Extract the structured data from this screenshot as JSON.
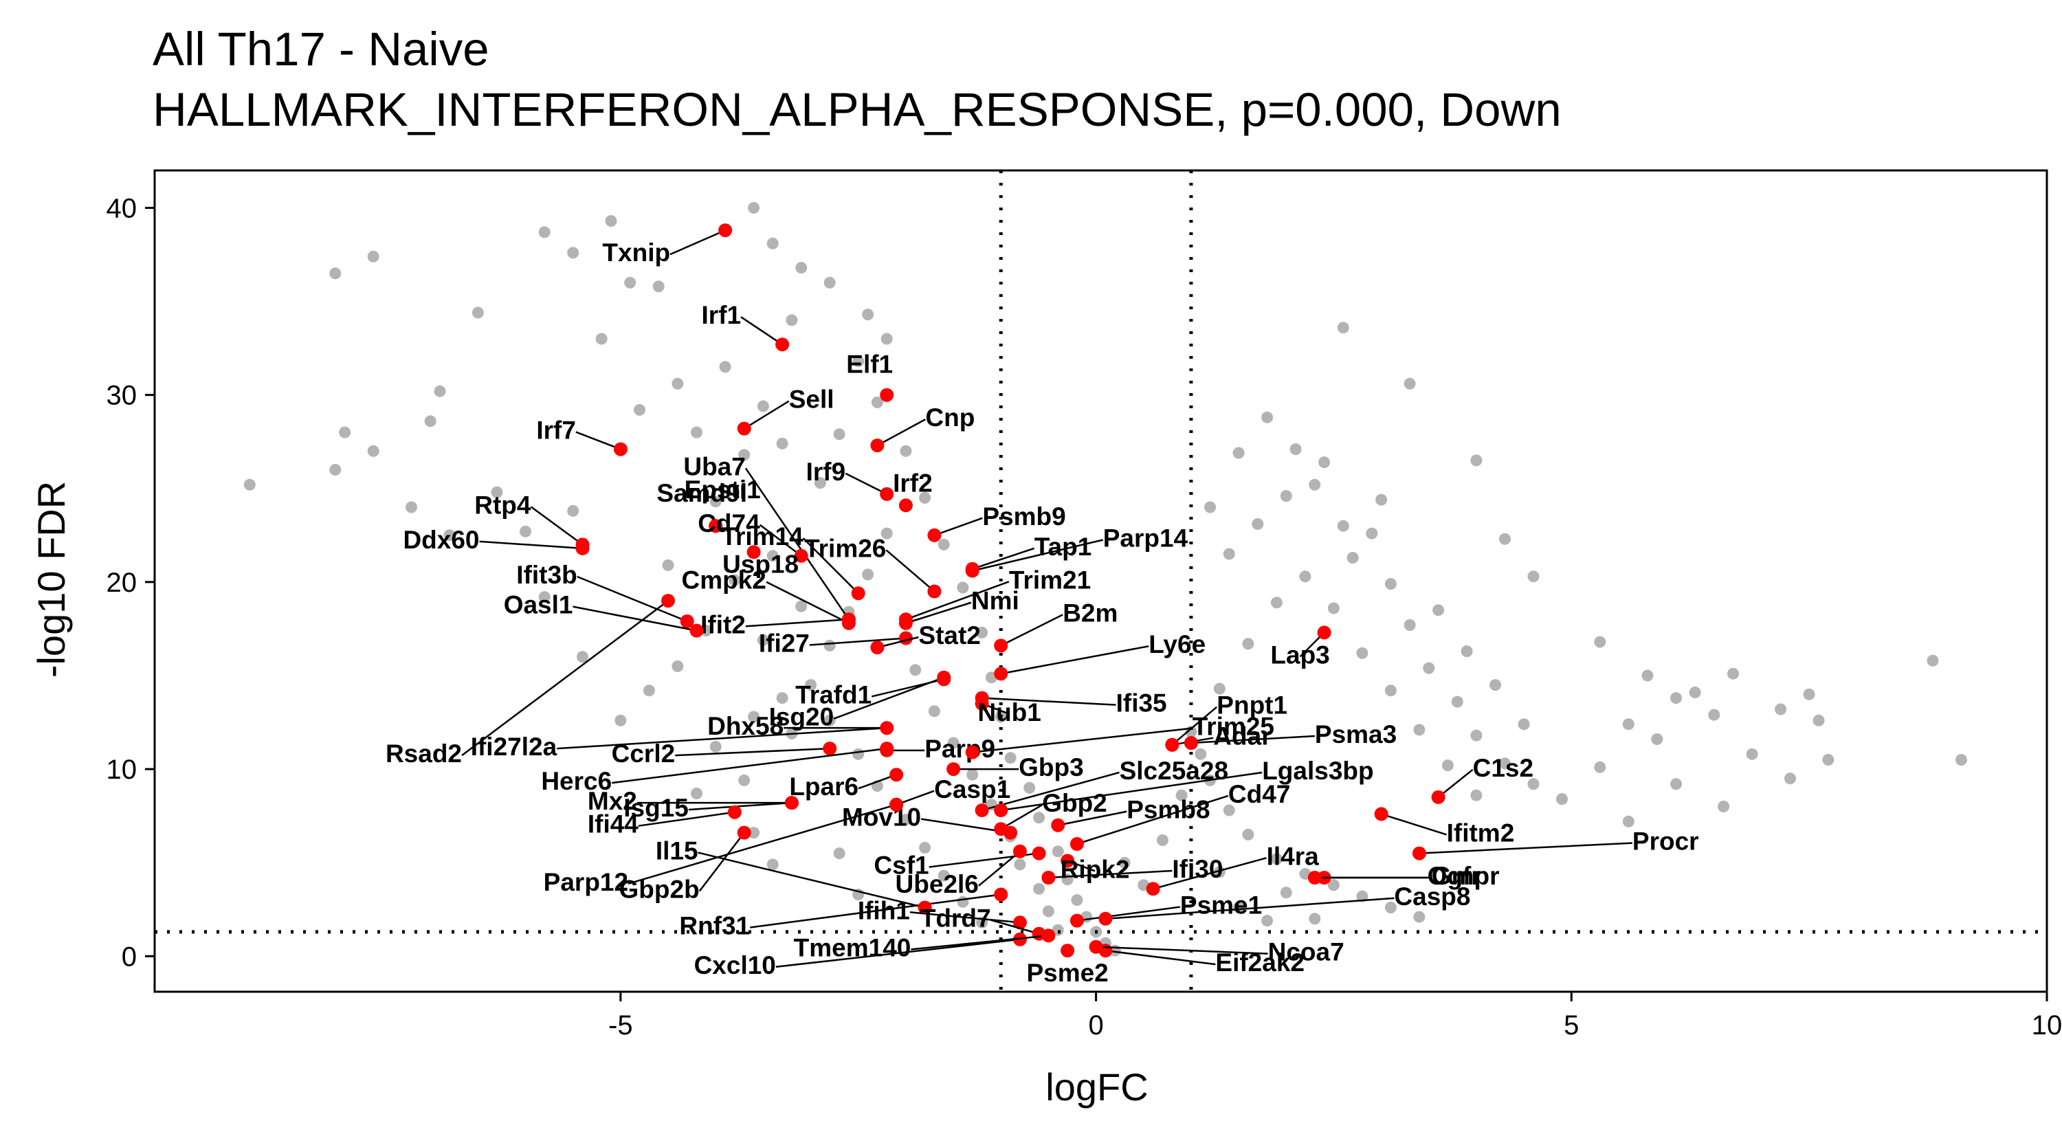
{
  "chart_data": {
    "type": "scatter",
    "title": "All Th17 - Naive",
    "subtitle": "HALLMARK_INTERFERON_ALPHA_RESPONSE, p=0.000, Down",
    "xlabel": "logFC",
    "ylabel": "-log10 FDR",
    "xlim": [
      -9.9,
      10
    ],
    "ylim": [
      -1.9,
      42
    ],
    "x_ticks": [
      -5,
      0,
      5,
      10
    ],
    "y_ticks": [
      0,
      10,
      20,
      30,
      40
    ],
    "threshold_lines": {
      "x": [
        -1,
        1
      ],
      "y": [
        1.3
      ]
    },
    "grid": false,
    "legend": "none",
    "colors": {
      "background_points": "#b3b3b3",
      "highlight_points": "#ff0000",
      "lines": "#000000"
    },
    "background_points_note": "dense cloud of gene points in gray",
    "background_points": [
      [
        -8.9,
        25.2
      ],
      [
        -8.0,
        36.5
      ],
      [
        -7.6,
        37.4
      ],
      [
        -7.9,
        28.0
      ],
      [
        -8.0,
        26.0
      ],
      [
        -7.6,
        27.0
      ],
      [
        -7.2,
        24.0
      ],
      [
        -7.0,
        28.6
      ],
      [
        -6.9,
        30.2
      ],
      [
        -6.5,
        34.4
      ],
      [
        -6.8,
        22.5
      ],
      [
        -5.8,
        38.7
      ],
      [
        -5.5,
        37.6
      ],
      [
        -5.1,
        39.3
      ],
      [
        -4.9,
        36.0
      ],
      [
        -4.6,
        35.8
      ],
      [
        -3.6,
        40.0
      ],
      [
        -3.4,
        38.1
      ],
      [
        -3.1,
        36.8
      ],
      [
        -3.2,
        34.0
      ],
      [
        -2.8,
        36.0
      ],
      [
        -2.4,
        34.3
      ],
      [
        -2.2,
        33.0
      ],
      [
        -2.5,
        31.8
      ],
      [
        -5.2,
        33.0
      ],
      [
        -4.8,
        29.2
      ],
      [
        -4.4,
        30.6
      ],
      [
        -4.2,
        28.0
      ],
      [
        -3.9,
        31.5
      ],
      [
        -3.5,
        29.4
      ],
      [
        -6.3,
        24.8
      ],
      [
        -6.0,
        22.7
      ],
      [
        -5.5,
        23.8
      ],
      [
        -5.8,
        19.2
      ],
      [
        -5.4,
        16.0
      ],
      [
        -4.7,
        14.2
      ],
      [
        -5.0,
        12.6
      ],
      [
        -4.4,
        15.5
      ],
      [
        -4.0,
        11.2
      ],
      [
        -3.7,
        9.4
      ],
      [
        -4.2,
        8.7
      ],
      [
        -3.6,
        6.6
      ],
      [
        -3.4,
        4.9
      ],
      [
        -2.7,
        5.5
      ],
      [
        -2.5,
        3.3
      ],
      [
        -3.1,
        18.7
      ],
      [
        -3.4,
        21.4
      ],
      [
        -2.9,
        25.3
      ],
      [
        -2.7,
        27.9
      ],
      [
        -2.3,
        29.6
      ],
      [
        -2.0,
        27.0
      ],
      [
        -1.8,
        24.5
      ],
      [
        -1.6,
        22.0
      ],
      [
        -1.4,
        19.7
      ],
      [
        -1.2,
        17.3
      ],
      [
        -1.1,
        14.9
      ],
      [
        -1.0,
        12.8
      ],
      [
        -0.9,
        10.6
      ],
      [
        -0.7,
        9.0
      ],
      [
        -0.6,
        7.4
      ],
      [
        -0.4,
        5.6
      ],
      [
        -0.3,
        4.1
      ],
      [
        -0.2,
        3.0
      ],
      [
        -0.1,
        2.1
      ],
      [
        0.0,
        1.3
      ],
      [
        0.1,
        0.7
      ],
      [
        0.2,
        0.3
      ],
      [
        -2.2,
        22.6
      ],
      [
        -2.4,
        20.4
      ],
      [
        -2.6,
        18.4
      ],
      [
        -2.8,
        16.6
      ],
      [
        -3.0,
        14.5
      ],
      [
        -2.8,
        12.6
      ],
      [
        -2.5,
        10.8
      ],
      [
        -2.3,
        9.1
      ],
      [
        -2.0,
        7.3
      ],
      [
        -1.8,
        5.8
      ],
      [
        -1.6,
        4.3
      ],
      [
        -1.4,
        2.9
      ],
      [
        -1.2,
        1.8
      ],
      [
        -1.9,
        15.3
      ],
      [
        -1.7,
        13.1
      ],
      [
        -1.5,
        11.4
      ],
      [
        -1.3,
        9.7
      ],
      [
        -1.1,
        8.1
      ],
      [
        -0.9,
        6.4
      ],
      [
        -0.8,
        4.9
      ],
      [
        -0.6,
        3.6
      ],
      [
        -0.5,
        2.4
      ],
      [
        -0.4,
        1.4
      ],
      [
        -3.8,
        20.1
      ],
      [
        -3.5,
        16.9
      ],
      [
        -3.3,
        13.8
      ],
      [
        -3.2,
        11.9
      ],
      [
        -3.6,
        12.8
      ],
      [
        -4.1,
        17.4
      ],
      [
        -4.5,
        20.9
      ],
      [
        -4.0,
        24.3
      ],
      [
        -3.7,
        26.8
      ],
      [
        -3.3,
        27.4
      ],
      [
        1.2,
        24.0
      ],
      [
        1.5,
        26.9
      ],
      [
        1.8,
        28.8
      ],
      [
        2.1,
        27.1
      ],
      [
        2.3,
        25.2
      ],
      [
        2.6,
        23.0
      ],
      [
        2.9,
        22.6
      ],
      [
        3.1,
        19.9
      ],
      [
        3.3,
        17.7
      ],
      [
        3.5,
        15.4
      ],
      [
        3.8,
        13.6
      ],
      [
        4.0,
        11.8
      ],
      [
        4.3,
        10.3
      ],
      [
        4.6,
        9.2
      ],
      [
        4.9,
        8.4
      ],
      [
        5.3,
        10.1
      ],
      [
        5.6,
        12.4
      ],
      [
        5.9,
        11.6
      ],
      [
        6.1,
        13.8
      ],
      [
        6.5,
        12.9
      ],
      [
        6.9,
        10.8
      ],
      [
        7.3,
        9.5
      ],
      [
        7.6,
        12.6
      ],
      [
        7.7,
        10.5
      ],
      [
        8.8,
        15.8
      ],
      [
        9.1,
        10.5
      ],
      [
        2.6,
        33.6
      ],
      [
        3.3,
        30.6
      ],
      [
        4.0,
        26.5
      ],
      [
        4.3,
        22.3
      ],
      [
        4.6,
        20.3
      ],
      [
        5.3,
        16.8
      ],
      [
        5.8,
        15.0
      ],
      [
        6.3,
        14.1
      ],
      [
        6.7,
        15.1
      ],
      [
        7.2,
        13.2
      ],
      [
        7.5,
        14.0
      ],
      [
        6.6,
        8.0
      ],
      [
        6.1,
        9.2
      ],
      [
        5.6,
        7.2
      ],
      [
        1.0,
        12.0
      ],
      [
        1.2,
        9.4
      ],
      [
        1.4,
        7.8
      ],
      [
        1.6,
        6.5
      ],
      [
        1.9,
        5.2
      ],
      [
        2.2,
        4.4
      ],
      [
        2.5,
        3.8
      ],
      [
        2.8,
        3.2
      ],
      [
        3.1,
        2.6
      ],
      [
        3.4,
        2.1
      ],
      [
        1.3,
        14.3
      ],
      [
        1.6,
        16.7
      ],
      [
        1.9,
        18.9
      ],
      [
        2.2,
        20.3
      ],
      [
        2.5,
        18.6
      ],
      [
        2.8,
        16.2
      ],
      [
        3.1,
        14.2
      ],
      [
        3.4,
        12.1
      ],
      [
        3.7,
        10.2
      ],
      [
        4.0,
        8.6
      ],
      [
        0.3,
        5.0
      ],
      [
        0.5,
        3.8
      ],
      [
        0.7,
        6.2
      ],
      [
        0.9,
        8.6
      ],
      [
        1.1,
        10.8
      ],
      [
        1.3,
        4.5
      ],
      [
        1.5,
        2.6
      ],
      [
        1.8,
        1.9
      ],
      [
        2.0,
        3.4
      ],
      [
        2.3,
        2.0
      ],
      [
        1.4,
        21.5
      ],
      [
        1.7,
        23.1
      ],
      [
        2.0,
        24.6
      ],
      [
        2.4,
        26.4
      ],
      [
        2.7,
        21.3
      ],
      [
        3.0,
        24.4
      ],
      [
        3.6,
        18.5
      ],
      [
        3.9,
        16.3
      ],
      [
        4.2,
        14.5
      ],
      [
        4.5,
        12.4
      ]
    ],
    "highlighted_genes": [
      {
        "label": "Txnip",
        "x": -3.9,
        "y": 38.8
      },
      {
        "label": "Irf1",
        "x": -3.3,
        "y": 32.7
      },
      {
        "label": "Elf1",
        "x": -2.2,
        "y": 30.0
      },
      {
        "label": "Sell",
        "x": -3.7,
        "y": 28.2
      },
      {
        "label": "Cnp",
        "x": -2.3,
        "y": 27.3
      },
      {
        "label": "Irf7",
        "x": -5.0,
        "y": 27.1
      },
      {
        "label": "Samd9l",
        "x": -4.0,
        "y": 23.0
      },
      {
        "label": "Irf9",
        "x": -2.2,
        "y": 24.7
      },
      {
        "label": "Irf2",
        "x": -2.0,
        "y": 24.1
      },
      {
        "label": "Uba7",
        "x": -2.6,
        "y": 18.0
      },
      {
        "label": "Epsti1",
        "x": -4.0,
        "y": 23.0
      },
      {
        "label": "Tap1",
        "x": -1.3,
        "y": 20.7
      },
      {
        "label": "Rtp4",
        "x": -5.4,
        "y": 22.0
      },
      {
        "label": "Cd74",
        "x": -3.1,
        "y": 21.4
      },
      {
        "label": "Usp18",
        "x": -3.6,
        "y": 21.6
      },
      {
        "label": "Psmb9",
        "x": -1.7,
        "y": 22.5
      },
      {
        "label": "Parp14",
        "x": -1.3,
        "y": 20.6
      },
      {
        "label": "Ddx60",
        "x": -5.4,
        "y": 21.8
      },
      {
        "label": "Trim26",
        "x": -1.7,
        "y": 19.5
      },
      {
        "label": "Cmpk2",
        "x": -2.6,
        "y": 17.8
      },
      {
        "label": "Trim14",
        "x": -2.5,
        "y": 19.4
      },
      {
        "label": "Trim21",
        "x": -2.0,
        "y": 18.0
      },
      {
        "label": "Ifit3b",
        "x": -4.3,
        "y": 17.9
      },
      {
        "label": "Ifit2",
        "x": -2.6,
        "y": 18.0
      },
      {
        "label": "Nmi",
        "x": -2.0,
        "y": 17.8
      },
      {
        "label": "Ifi27",
        "x": -2.0,
        "y": 17.0
      },
      {
        "label": "Oasl1",
        "x": -4.2,
        "y": 17.4
      },
      {
        "label": "Ly6e",
        "x": -1.0,
        "y": 15.1
      },
      {
        "label": "Stat2",
        "x": -2.3,
        "y": 16.5
      },
      {
        "label": "B2m",
        "x": -1.0,
        "y": 16.6
      },
      {
        "label": "Lap3",
        "x": 2.4,
        "y": 17.3
      },
      {
        "label": "Rsad2",
        "x": -4.5,
        "y": 19.0
      },
      {
        "label": "Isg20",
        "x": -1.6,
        "y": 14.9
      },
      {
        "label": "Ifi35",
        "x": -1.2,
        "y": 13.8
      },
      {
        "label": "Trafd1",
        "x": -1.6,
        "y": 14.8
      },
      {
        "label": "Nub1",
        "x": -1.2,
        "y": 13.5
      },
      {
        "label": "Pnpt1",
        "x": 0.8,
        "y": 11.3
      },
      {
        "label": "Ifi27l2a",
        "x": -2.2,
        "y": 12.2
      },
      {
        "label": "Ccrl2",
        "x": -2.8,
        "y": 11.1
      },
      {
        "label": "Dhx58",
        "x": -2.2,
        "y": 12.2
      },
      {
        "label": "Parp9",
        "x": -2.2,
        "y": 11.0
      },
      {
        "label": "Trim25",
        "x": -1.3,
        "y": 10.9
      },
      {
        "label": "Adar",
        "x": 0.8,
        "y": 11.3
      },
      {
        "label": "Psma3",
        "x": 1.0,
        "y": 11.4
      },
      {
        "label": "Herc6",
        "x": -2.2,
        "y": 11.1
      },
      {
        "label": "Mx2",
        "x": -3.2,
        "y": 8.2
      },
      {
        "label": "Isg15",
        "x": -3.2,
        "y": 8.2
      },
      {
        "label": "Lpar6",
        "x": -2.1,
        "y": 9.7
      },
      {
        "label": "Gbp3",
        "x": -1.5,
        "y": 10.0
      },
      {
        "label": "C1s2",
        "x": 3.6,
        "y": 8.5
      },
      {
        "label": "Ifi44",
        "x": -3.8,
        "y": 7.7
      },
      {
        "label": "Casp1",
        "x": -2.1,
        "y": 8.1
      },
      {
        "label": "Slc25a28",
        "x": -1.2,
        "y": 7.8
      },
      {
        "label": "Lgals3bp",
        "x": -1.0,
        "y": 7.8
      },
      {
        "label": "Ifitm2",
        "x": 3.0,
        "y": 7.6
      },
      {
        "label": "Mov10",
        "x": -0.9,
        "y": 6.6
      },
      {
        "label": "Gbp2",
        "x": -1.0,
        "y": 6.8
      },
      {
        "label": "Psmb8",
        "x": -0.4,
        "y": 7.0
      },
      {
        "label": "Cd47",
        "x": -0.2,
        "y": 6.0
      },
      {
        "label": "Parp12",
        "x": -2.1,
        "y": 8.1
      },
      {
        "label": "Gbp2b",
        "x": -3.7,
        "y": 6.6
      },
      {
        "label": "Csf1",
        "x": -0.6,
        "y": 5.5
      },
      {
        "label": "Ube2l6",
        "x": -0.8,
        "y": 5.6
      },
      {
        "label": "Ripk2",
        "x": -0.3,
        "y": 5.1
      },
      {
        "label": "Ifi30",
        "x": -0.5,
        "y": 4.2
      },
      {
        "label": "Ogfr",
        "x": 2.4,
        "y": 4.2
      },
      {
        "label": "Gmpr",
        "x": 2.3,
        "y": 4.2
      },
      {
        "label": "Procr",
        "x": 3.4,
        "y": 5.5
      },
      {
        "label": "Rnf31",
        "x": -1.0,
        "y": 3.3
      },
      {
        "label": "Il15",
        "x": -1.8,
        "y": 2.6
      },
      {
        "label": "Ifih1",
        "x": -0.8,
        "y": 1.8
      },
      {
        "label": "Tdrd7",
        "x": -0.6,
        "y": 1.2
      },
      {
        "label": "Psme1",
        "x": -0.2,
        "y": 1.9
      },
      {
        "label": "Il4ra",
        "x": 0.6,
        "y": 3.6
      },
      {
        "label": "Casp8",
        "x": 0.1,
        "y": 2.0
      },
      {
        "label": "Cxcl10",
        "x": -0.8,
        "y": 0.9
      },
      {
        "label": "Tmem140",
        "x": -0.5,
        "y": 1.1
      },
      {
        "label": "Psme2",
        "x": -0.3,
        "y": 0.3
      },
      {
        "label": "Eif2ak2",
        "x": 0.1,
        "y": 0.3
      },
      {
        "label": "Ncoa7",
        "x": 0.0,
        "y": 0.5
      }
    ]
  }
}
